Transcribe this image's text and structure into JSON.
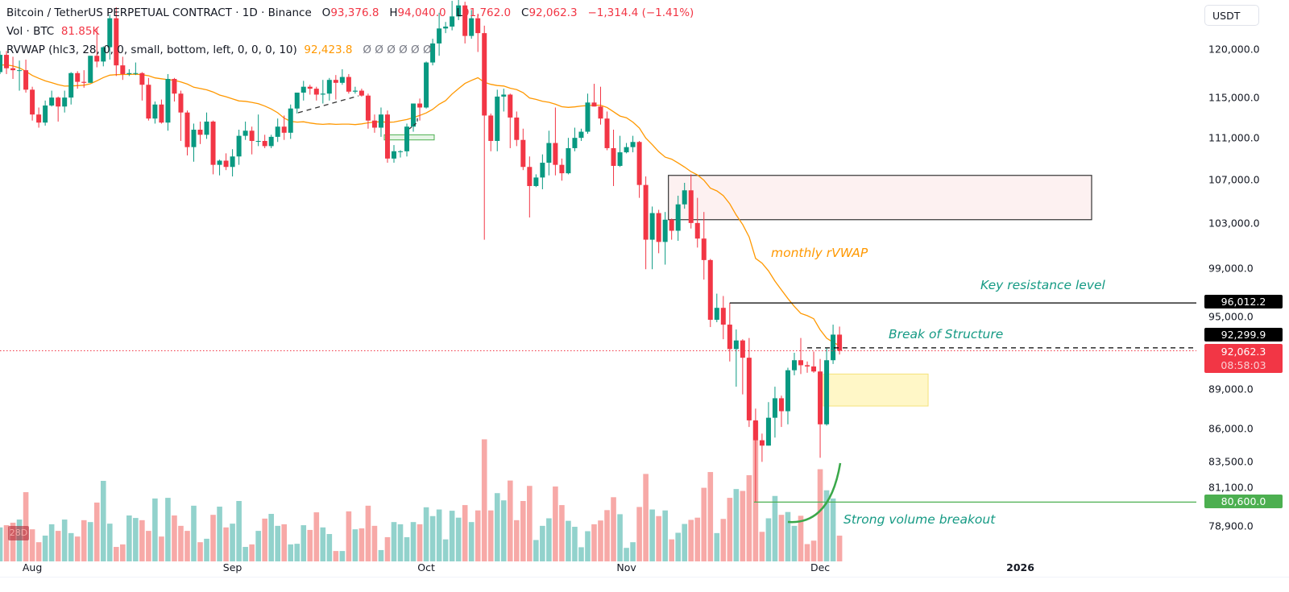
{
  "legend": {
    "symbol": "Bitcoin / TetherUS PERPETUAL CONTRACT · 1D · Binance",
    "o_label": "O",
    "o_value": "93,376.8",
    "h_label": "H",
    "h_value": "94,040.0",
    "l_label": "L",
    "l_value": "91,762.0",
    "c_label": "C",
    "c_value": "92,062.3",
    "change": "−1,314.4 (−1.41%)",
    "vol_label": "Vol · BTC",
    "vol_value": "81.85K",
    "rvwap_label": "RVWAP (hlc3, 28, 0, 0, small, bottom, left, 0, 0, 0, 10)",
    "rvwap_value": "92,423.8",
    "rvwap_empty": "Ø  Ø  Ø  Ø  Ø  Ø"
  },
  "axis": {
    "currency": "USDT",
    "price_ticks": [
      "120,000.0",
      "115,000.0",
      "111,000.0",
      "107,000.0",
      "103,000.0",
      "99,000.0",
      "95,000.0",
      "89,000.0",
      "86,000.0",
      "83,500.0",
      "81,100.0",
      "78,900.0"
    ],
    "time_labels": [
      "Aug",
      "Sep",
      "Oct",
      "Nov",
      "Dec",
      "2026"
    ],
    "price_labels": {
      "resistance": "96,012.2",
      "bos": "92,299.9",
      "last": "92,062.3",
      "countdown": "08:58:03",
      "support": "80,600.0"
    },
    "volume_badge": "28D"
  },
  "annotations": {
    "rvwap_text": "monthly rVWAP",
    "resistance_text": "Key resistance level",
    "bos_text": "Break of Structure",
    "volume_text": "Strong volume breakout"
  },
  "colors": {
    "up": "#089981",
    "down": "#f23645",
    "vol_up": "#92d2cc",
    "vol_down": "#f7a9a7",
    "rvwap": "#ff9800",
    "annotation": "#159a84",
    "supply_zone": "#fdf1f1",
    "demand_zone": "#fff7c7",
    "support_line": "#4caf50"
  },
  "chart_data": {
    "type": "candlestick",
    "y_scale": "log",
    "ylim": [
      77500,
      126500
    ],
    "grid": false,
    "indicator": {
      "name": "RVWAP",
      "source": "hlc3",
      "length_days": 28,
      "last_value": 92423.8
    },
    "levels": {
      "resistance": 96012.2,
      "break_of_structure": 92299.9,
      "last_price": 92062.3,
      "support": 80600.0
    },
    "zones": {
      "supply": {
        "from": "2025-11-08",
        "top": 107400,
        "bottom": 103300
      },
      "demand": {
        "from": "2025-12-02",
        "top": 90200,
        "bottom": 87700
      },
      "small_green": {
        "from": "2025-09-25",
        "top": 111300,
        "bottom": 110800
      }
    },
    "columns": [
      "date",
      "open",
      "high",
      "low",
      "close",
      "volume_k_btc"
    ],
    "rows": [
      [
        "2025-07-26",
        117300,
        118000,
        117100,
        117600,
        77
      ],
      [
        "2025-07-27",
        117600,
        119800,
        117400,
        119400,
        108
      ],
      [
        "2025-07-28",
        119400,
        119800,
        117400,
        118000,
        115
      ],
      [
        "2025-07-29",
        118000,
        119200,
        116900,
        117800,
        123
      ],
      [
        "2025-07-30",
        117800,
        118800,
        115700,
        117800,
        133
      ],
      [
        "2025-07-31",
        117800,
        118900,
        115500,
        115800,
        220
      ],
      [
        "2025-08-01",
        115800,
        116100,
        112700,
        113300,
        102
      ],
      [
        "2025-08-02",
        113300,
        114000,
        112000,
        112500,
        61
      ],
      [
        "2025-08-03",
        112500,
        114700,
        112200,
        114200,
        82
      ],
      [
        "2025-08-04",
        114200,
        115700,
        114100,
        115000,
        118
      ],
      [
        "2025-08-05",
        115000,
        115100,
        112600,
        114100,
        97
      ],
      [
        "2025-08-06",
        114100,
        115700,
        113500,
        115000,
        133
      ],
      [
        "2025-08-07",
        115000,
        117600,
        114300,
        117500,
        90
      ],
      [
        "2025-08-08",
        117500,
        117700,
        115900,
        116600,
        79
      ],
      [
        "2025-08-09",
        116600,
        117800,
        116000,
        116500,
        131
      ],
      [
        "2025-08-10",
        116500,
        119300,
        116500,
        119300,
        125
      ],
      [
        "2025-08-11",
        119300,
        122300,
        118100,
        118700,
        187
      ],
      [
        "2025-08-12",
        118700,
        120300,
        118200,
        120200,
        256
      ],
      [
        "2025-08-13",
        120200,
        123700,
        118900,
        123300,
        120
      ],
      [
        "2025-08-14",
        123300,
        124500,
        117200,
        118300,
        46
      ],
      [
        "2025-08-15",
        118300,
        119200,
        116800,
        117400,
        54
      ],
      [
        "2025-08-16",
        117400,
        117900,
        117200,
        117500,
        146
      ],
      [
        "2025-08-17",
        117500,
        118600,
        117300,
        117500,
        138
      ],
      [
        "2025-08-18",
        117500,
        117600,
        114700,
        116300,
        131
      ],
      [
        "2025-08-19",
        116300,
        117000,
        112700,
        112900,
        97
      ],
      [
        "2025-08-20",
        112900,
        114600,
        112400,
        114300,
        200
      ],
      [
        "2025-08-21",
        114300,
        114800,
        112400,
        112500,
        79
      ],
      [
        "2025-08-22",
        112500,
        117400,
        111700,
        116900,
        202
      ],
      [
        "2025-08-23",
        116900,
        117000,
        114600,
        115400,
        146
      ],
      [
        "2025-08-24",
        115400,
        115700,
        110700,
        113500,
        113
      ],
      [
        "2025-08-25",
        113500,
        113700,
        109300,
        110100,
        97
      ],
      [
        "2025-08-26",
        110100,
        112400,
        108700,
        111800,
        177
      ],
      [
        "2025-08-27",
        111800,
        112600,
        110400,
        111300,
        61
      ],
      [
        "2025-08-28",
        111300,
        113500,
        110900,
        112600,
        72
      ],
      [
        "2025-08-29",
        112600,
        112700,
        107500,
        108400,
        148
      ],
      [
        "2025-08-30",
        108400,
        108900,
        107400,
        108800,
        174
      ],
      [
        "2025-08-31",
        108800,
        109500,
        107900,
        108200,
        108
      ],
      [
        "2025-09-01",
        108200,
        109900,
        107300,
        109200,
        120
      ],
      [
        "2025-09-02",
        109200,
        111800,
        108400,
        111200,
        192
      ],
      [
        "2025-09-03",
        111200,
        112600,
        110800,
        111700,
        46
      ],
      [
        "2025-09-04",
        111700,
        112100,
        109400,
        110700,
        54
      ],
      [
        "2025-09-05",
        110700,
        113300,
        110200,
        110700,
        97
      ],
      [
        "2025-09-06",
        110700,
        111300,
        110000,
        110200,
        136
      ],
      [
        "2025-09-07",
        110200,
        111300,
        110000,
        111100,
        151
      ],
      [
        "2025-09-08",
        111100,
        112900,
        110600,
        112100,
        113
      ],
      [
        "2025-09-09",
        112100,
        113200,
        110800,
        111500,
        118
      ],
      [
        "2025-09-10",
        111500,
        114300,
        110900,
        113900,
        54
      ],
      [
        "2025-09-11",
        113900,
        115500,
        113400,
        115500,
        56
      ],
      [
        "2025-09-12",
        115500,
        116700,
        114700,
        116100,
        115
      ],
      [
        "2025-09-13",
        116100,
        116300,
        115300,
        115900,
        100
      ],
      [
        "2025-09-14",
        115900,
        116100,
        114700,
        115300,
        156
      ],
      [
        "2025-09-15",
        115300,
        116800,
        114400,
        115400,
        108
      ],
      [
        "2025-09-16",
        115400,
        117000,
        114700,
        116800,
        87
      ],
      [
        "2025-09-17",
        116800,
        117300,
        114800,
        116500,
        33
      ],
      [
        "2025-09-18",
        116500,
        117900,
        116300,
        117100,
        33
      ],
      [
        "2025-09-19",
        117100,
        117400,
        115400,
        115600,
        159
      ],
      [
        "2025-09-20",
        115600,
        116100,
        115400,
        115700,
        102
      ],
      [
        "2025-09-21",
        115700,
        115900,
        115100,
        115200,
        105
      ],
      [
        "2025-09-22",
        115200,
        115400,
        111900,
        112700,
        177
      ],
      [
        "2025-09-23",
        112700,
        113300,
        111500,
        112000,
        113
      ],
      [
        "2025-09-24",
        112000,
        114000,
        111100,
        113300,
        36
      ],
      [
        "2025-09-25",
        113300,
        113700,
        108600,
        109000,
        77
      ],
      [
        "2025-09-26",
        109000,
        110300,
        108600,
        109700,
        125
      ],
      [
        "2025-09-27",
        109700,
        109800,
        109100,
        109700,
        118
      ],
      [
        "2025-09-28",
        109700,
        112400,
        109200,
        112100,
        77
      ],
      [
        "2025-09-29",
        112100,
        114400,
        111600,
        114400,
        125
      ],
      [
        "2025-09-30",
        114400,
        114900,
        112700,
        114000,
        118
      ],
      [
        "2025-10-01",
        114000,
        118700,
        113900,
        118600,
        172
      ],
      [
        "2025-10-02",
        118600,
        121100,
        118300,
        120600,
        144
      ],
      [
        "2025-10-03",
        120600,
        123900,
        119300,
        122200,
        165
      ],
      [
        "2025-10-04",
        122200,
        122900,
        121700,
        122400,
        70
      ],
      [
        "2025-10-05",
        122400,
        125200,
        122000,
        123500,
        161
      ],
      [
        "2025-10-06",
        123500,
        126200,
        123100,
        124700,
        139
      ],
      [
        "2025-10-07",
        124700,
        125100,
        120600,
        121400,
        179
      ],
      [
        "2025-10-08",
        121400,
        124200,
        121100,
        123300,
        125
      ],
      [
        "2025-10-09",
        123300,
        123800,
        119700,
        121700,
        162
      ],
      [
        "2025-10-10",
        121700,
        122500,
        101500,
        113200,
        388
      ],
      [
        "2025-10-11",
        113200,
        113400,
        109700,
        110700,
        162
      ],
      [
        "2025-10-12",
        110700,
        115800,
        109700,
        115100,
        217
      ],
      [
        "2025-10-13",
        115100,
        115900,
        113600,
        115300,
        194
      ],
      [
        "2025-10-14",
        115300,
        115400,
        110000,
        113000,
        257
      ],
      [
        "2025-10-15",
        113000,
        113600,
        110200,
        110800,
        131
      ],
      [
        "2025-10-16",
        110800,
        111900,
        107900,
        108200,
        192
      ],
      [
        "2025-10-17",
        108200,
        109200,
        103500,
        106400,
        240
      ],
      [
        "2025-10-18",
        106400,
        107500,
        106300,
        107200,
        68
      ],
      [
        "2025-10-19",
        107200,
        109400,
        106100,
        108600,
        113
      ],
      [
        "2025-10-20",
        108600,
        111700,
        107400,
        110500,
        137
      ],
      [
        "2025-10-21",
        110500,
        114000,
        107400,
        108400,
        238
      ],
      [
        "2025-10-22",
        108400,
        109000,
        106900,
        107600,
        179
      ],
      [
        "2025-10-23",
        107600,
        111000,
        107500,
        110000,
        129
      ],
      [
        "2025-10-24",
        110000,
        112000,
        109700,
        111000,
        110
      ],
      [
        "2025-10-25",
        111000,
        111900,
        110700,
        111600,
        45
      ],
      [
        "2025-10-26",
        111600,
        115400,
        111400,
        114500,
        96
      ],
      [
        "2025-10-27",
        114500,
        116400,
        114100,
        114100,
        118
      ],
      [
        "2025-10-28",
        114100,
        116100,
        112300,
        112900,
        130
      ],
      [
        "2025-10-29",
        112900,
        113600,
        109800,
        110000,
        163
      ],
      [
        "2025-10-30",
        110000,
        111800,
        106400,
        108300,
        204
      ],
      [
        "2025-10-31",
        108300,
        111200,
        108200,
        109600,
        150
      ],
      [
        "2025-11-01",
        109600,
        110500,
        109500,
        110100,
        43
      ],
      [
        "2025-11-02",
        110100,
        111200,
        109600,
        110600,
        61
      ],
      [
        "2025-11-03",
        110600,
        110700,
        105300,
        106500,
        173
      ],
      [
        "2025-11-04",
        106500,
        107300,
        98900,
        101500,
        278
      ],
      [
        "2025-11-05",
        101500,
        104500,
        98900,
        103900,
        165
      ],
      [
        "2025-11-06",
        103900,
        104200,
        100300,
        101300,
        144
      ],
      [
        "2025-11-07",
        101300,
        104000,
        99300,
        103300,
        162
      ],
      [
        "2025-11-08",
        103300,
        103400,
        101500,
        102300,
        70
      ],
      [
        "2025-11-09",
        102300,
        105500,
        101400,
        104700,
        91
      ],
      [
        "2025-11-10",
        104700,
        106700,
        104300,
        106000,
        119
      ],
      [
        "2025-11-11",
        106000,
        107500,
        102500,
        103000,
        132
      ],
      [
        "2025-11-12",
        103000,
        105300,
        100800,
        101600,
        139
      ],
      [
        "2025-11-13",
        101600,
        104000,
        98000,
        99700,
        234
      ],
      [
        "2025-11-14",
        99700,
        99800,
        94000,
        94600,
        284
      ],
      [
        "2025-11-15",
        94600,
        96800,
        94400,
        95600,
        90
      ],
      [
        "2025-11-16",
        95600,
        96600,
        93000,
        94200,
        135
      ],
      [
        "2025-11-17",
        94200,
        96012,
        91200,
        92200,
        202
      ],
      [
        "2025-11-18",
        92200,
        93800,
        89200,
        92900,
        230
      ],
      [
        "2025-11-19",
        92900,
        93000,
        88600,
        91500,
        224
      ],
      [
        "2025-11-20",
        91500,
        93100,
        86100,
        86600,
        274
      ],
      [
        "2025-11-21",
        86600,
        87500,
        80600,
        85100,
        444
      ],
      [
        "2025-11-22",
        85100,
        85600,
        83500,
        84700,
        94
      ],
      [
        "2025-11-23",
        84700,
        88000,
        84700,
        86800,
        137
      ],
      [
        "2025-11-24",
        86800,
        89200,
        85300,
        88300,
        208
      ],
      [
        "2025-11-25",
        88300,
        88500,
        86100,
        87300,
        148
      ],
      [
        "2025-11-26",
        87300,
        90700,
        86300,
        90500,
        157
      ],
      [
        "2025-11-27",
        90500,
        91900,
        90100,
        91300,
        113
      ],
      [
        "2025-11-28",
        91300,
        93100,
        90200,
        90900,
        145
      ],
      [
        "2025-11-29",
        90900,
        91200,
        90300,
        90800,
        55
      ],
      [
        "2025-11-30",
        90800,
        92000,
        90300,
        90400,
        66
      ],
      [
        "2025-12-01",
        90400,
        91400,
        83800,
        86300,
        293
      ],
      [
        "2025-12-02",
        86300,
        92300,
        86200,
        91300,
        226
      ],
      [
        "2025-12-03",
        91300,
        94200,
        91000,
        93376.8,
        200
      ],
      [
        "2025-12-04",
        93376.8,
        94040.0,
        91762.0,
        92062.3,
        81.85
      ]
    ]
  }
}
